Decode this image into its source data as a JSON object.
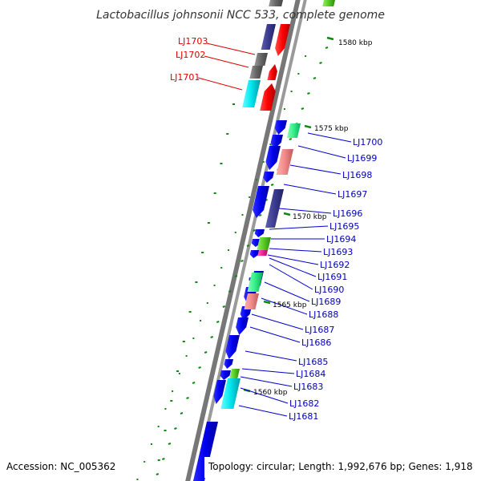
{
  "title": "Lactobacillus johnsonii NCC 533, complete genome",
  "accession": "Accession: NC_005362",
  "summary": "Topology: circular; Length: 1,992,676 bp; Genes: 1,918",
  "kbp_labels": [
    "1580 kbp",
    "1575 kbp",
    "1570 kbp",
    "1565 kbp",
    "1560 kbp"
  ],
  "left_labels": [
    "LJ1703",
    "LJ1702",
    "LJ1701"
  ],
  "right_labels": [
    "LJ1700",
    "LJ1699",
    "LJ1698",
    "LJ1697",
    "LJ1696",
    "LJ1695",
    "LJ1694",
    "LJ1693",
    "LJ1692",
    "LJ1691",
    "LJ1690",
    "LJ1689",
    "LJ1688",
    "LJ1687",
    "LJ1686",
    "LJ1685",
    "LJ1684",
    "LJ1683",
    "LJ1682",
    "LJ1681"
  ],
  "colors": {
    "cds": "#0000ee",
    "rrna": "#ff0000",
    "trna": "#00e5ee",
    "gray_gene": "#666666",
    "navy_gene": "#3b3b8f",
    "pink_gene": "#f08a8a",
    "green_gene": "#33ee88",
    "lime_gene": "#55cc22",
    "magenta_gene": "#ee2299",
    "tick_green": "#118811",
    "label_red": "#dd0000",
    "label_blue": "#0000bb"
  }
}
